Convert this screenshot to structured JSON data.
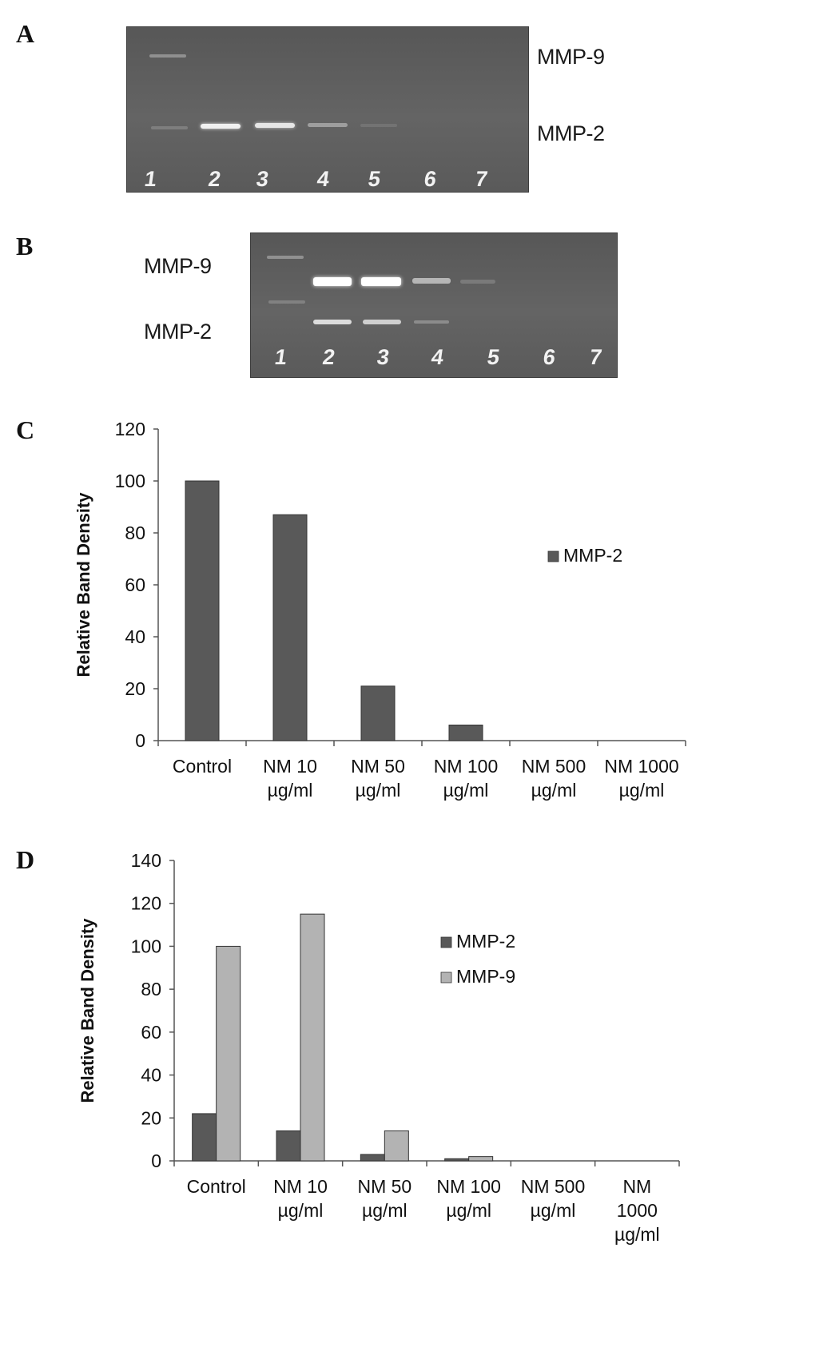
{
  "panels": {
    "a": {
      "letter": "A",
      "labels": [
        "MMP-9",
        "MMP-2"
      ],
      "lanes": [
        "1",
        "2",
        "3",
        "4",
        "5",
        "6",
        "7"
      ]
    },
    "b": {
      "letter": "B",
      "labels": [
        "MMP-9",
        "MMP-2"
      ],
      "lanes": [
        "1",
        "2",
        "3",
        "4",
        "5",
        "6",
        "7"
      ]
    },
    "c": {
      "letter": "C"
    },
    "d": {
      "letter": "D"
    }
  },
  "colors": {
    "mmp2": "#595959",
    "mmp9": "#b3b3b3",
    "gel": "#5e5e5e"
  },
  "chart_data": [
    {
      "type": "bar",
      "title": "",
      "xlabel": "",
      "ylabel": "Relative Band Density",
      "categories": [
        [
          "Control"
        ],
        [
          "NM 10",
          "µg/ml"
        ],
        [
          "NM 50",
          "µg/ml"
        ],
        [
          "NM 100",
          "µg/ml"
        ],
        [
          "NM 500",
          "µg/ml"
        ],
        [
          "NM 1000",
          "µg/ml"
        ]
      ],
      "series": [
        {
          "name": "MMP-2",
          "values": [
            100,
            87,
            21,
            6,
            0,
            0
          ]
        }
      ],
      "ylim": [
        0,
        120
      ],
      "yticks": [
        0,
        20,
        40,
        60,
        80,
        100,
        120
      ],
      "grid": false,
      "legend": "right"
    },
    {
      "type": "bar",
      "title": "",
      "xlabel": "",
      "ylabel": "Relative Band Density",
      "categories": [
        [
          "Control"
        ],
        [
          "NM 10",
          "µg/ml"
        ],
        [
          "NM 50",
          "µg/ml"
        ],
        [
          "NM 100",
          "µg/ml"
        ],
        [
          "NM 500",
          "µg/ml"
        ],
        [
          "NM",
          "1000",
          "µg/ml"
        ]
      ],
      "series": [
        {
          "name": "MMP-2",
          "values": [
            22,
            14,
            3,
            1,
            0,
            0
          ]
        },
        {
          "name": "MMP-9",
          "values": [
            100,
            115,
            14,
            2,
            0,
            0
          ]
        }
      ],
      "ylim": [
        0,
        140
      ],
      "yticks": [
        0,
        20,
        40,
        60,
        80,
        100,
        120,
        140
      ],
      "grid": false,
      "legend": "right"
    }
  ]
}
